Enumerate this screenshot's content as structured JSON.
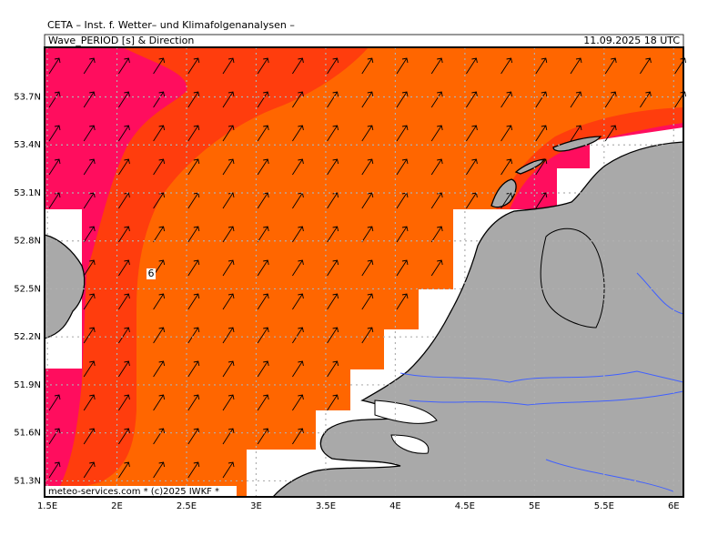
{
  "header": {
    "title": "CETA – Inst. f. Wetter– und Klimafolgenanalysen –",
    "parameter": "Wave_PERIOD [s] & Direction",
    "valid_time": "11.09.2025 18 UTC"
  },
  "map": {
    "lonlim": [
      1.48,
      6.07
    ],
    "latlim": [
      51.2,
      54.01
    ],
    "lon_ticks": [
      {
        "value": 1.5,
        "label": "1.5E"
      },
      {
        "value": 2,
        "label": "2E"
      },
      {
        "value": 2.5,
        "label": "2.5E"
      },
      {
        "value": 3,
        "label": "3E"
      },
      {
        "value": 3.5,
        "label": "3.5E"
      },
      {
        "value": 4,
        "label": "4E"
      },
      {
        "value": 4.5,
        "label": "4.5E"
      },
      {
        "value": 5,
        "label": "5E"
      },
      {
        "value": 5.5,
        "label": "5.5E"
      },
      {
        "value": 6,
        "label": "6E"
      }
    ],
    "lat_ticks": [
      {
        "value": 53.7,
        "label": "53.7N"
      },
      {
        "value": 53.4,
        "label": "53.4N"
      },
      {
        "value": 53.1,
        "label": "53.1N"
      },
      {
        "value": 52.8,
        "label": "52.8N"
      },
      {
        "value": 52.5,
        "label": "52.5N"
      },
      {
        "value": 52.2,
        "label": "52.2N"
      },
      {
        "value": 51.9,
        "label": "51.9N"
      },
      {
        "value": 51.6,
        "label": "51.6N"
      },
      {
        "value": 51.3,
        "label": "51.3N"
      }
    ],
    "contour_label": "6",
    "credit": "meteo-services.com * (c)2025 IWKF *"
  }
}
